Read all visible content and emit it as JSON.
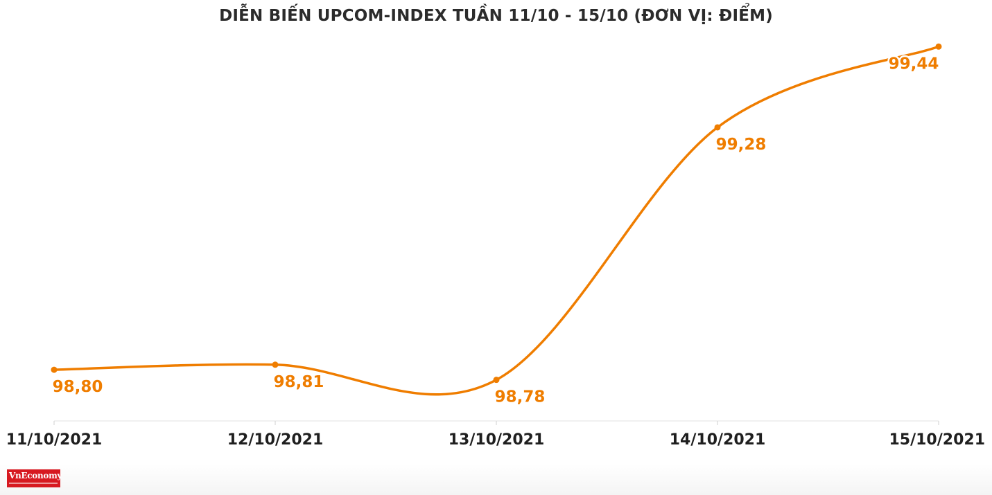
{
  "chart_data": {
    "type": "line",
    "title": "DIỄN BIẾN UPCOM-INDEX TUẦN 11/10 - 15/10 (ĐƠN VỊ: ĐIỂM)",
    "categories": [
      "11/10/2021",
      "12/10/2021",
      "13/10/2021",
      "14/10/2021",
      "15/10/2021"
    ],
    "values": [
      98.8,
      98.81,
      98.78,
      99.28,
      99.44
    ],
    "data_labels": [
      "98,80",
      "98,81",
      "98,78",
      "99,28",
      "99,44"
    ],
    "ylim": [
      98.7,
      99.45
    ],
    "grid": false,
    "line_style": "smooth",
    "color": "#ef7d00"
  },
  "logo": {
    "text": "VnEconomy"
  }
}
